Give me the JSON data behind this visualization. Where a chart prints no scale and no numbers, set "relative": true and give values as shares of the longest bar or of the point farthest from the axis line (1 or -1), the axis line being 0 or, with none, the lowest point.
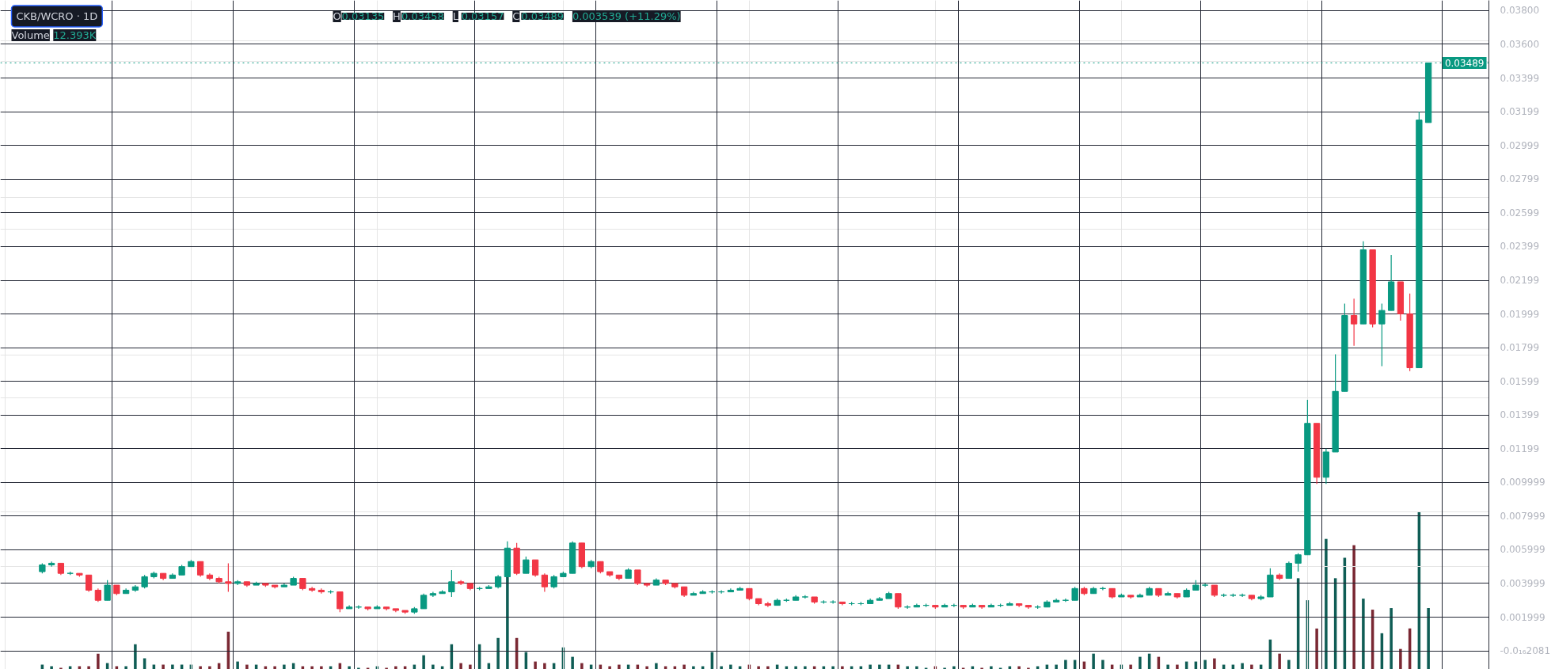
{
  "chart_data": [
    {
      "type": "candlestick",
      "title": "CKB/WCRO · 1D",
      "annotations": [
        "O0.03135",
        "H0.03458",
        "L0.03157",
        "C0.03489",
        "0.003539 (+11.29%)"
      ],
      "categories": [
        null,
        null,
        null,
        null,
        null,
        null,
        null,
        null,
        null,
        null,
        null,
        null,
        null,
        null,
        null,
        null,
        null,
        null,
        null,
        null,
        null,
        null,
        null,
        null,
        null,
        null,
        null,
        null,
        null,
        null,
        null,
        null,
        null,
        null,
        null,
        null,
        null,
        null,
        null,
        null,
        null,
        null,
        null,
        null,
        null,
        null,
        null,
        null,
        null,
        null,
        null,
        null,
        null,
        null,
        null,
        null,
        null,
        null,
        null,
        null,
        null,
        null,
        null,
        null,
        null,
        null,
        null,
        null,
        null,
        null,
        null,
        null,
        null,
        null,
        null,
        null,
        null,
        null,
        null,
        null,
        null,
        null,
        null,
        null,
        null,
        null,
        null,
        null,
        null,
        null,
        null,
        null,
        null,
        null,
        null,
        null,
        null,
        null,
        null,
        null,
        null,
        null,
        null,
        null,
        null,
        null,
        null,
        null,
        null,
        null,
        null,
        null,
        null,
        null,
        null,
        null,
        null,
        null,
        null,
        null,
        null,
        null,
        null,
        null,
        null,
        null,
        null,
        null,
        null,
        null,
        null,
        null,
        null,
        null,
        null,
        null,
        null,
        null,
        null,
        null,
        null,
        null,
        null,
        null,
        null,
        null,
        null,
        null,
        null,
        null,
        null,
        null,
        null,
        null,
        null,
        null,
        null,
        null,
        null,
        null
      ],
      "ohlc": [
        null,
        null,
        null,
        null,
        [
          0.0047,
          0.0052,
          0.0046,
          0.0051
        ],
        [
          0.0051,
          0.0053,
          0.005,
          0.0052
        ],
        [
          0.0052,
          0.0052,
          0.0045,
          0.0046
        ],
        [
          0.0046,
          0.0047,
          0.0045,
          0.0046
        ],
        [
          0.0046,
          0.0046,
          0.0044,
          0.0045
        ],
        [
          0.0045,
          0.0045,
          0.0035,
          0.0036
        ],
        [
          0.0036,
          0.0037,
          0.0029,
          0.003
        ],
        [
          0.003,
          0.0042,
          0.003,
          0.0039
        ],
        [
          0.0039,
          0.0039,
          0.0033,
          0.0034
        ],
        [
          0.0034,
          0.0037,
          0.0034,
          0.0036
        ],
        [
          0.0036,
          0.0039,
          0.0035,
          0.0038
        ],
        [
          0.0038,
          0.0045,
          0.0037,
          0.0044
        ],
        [
          0.0044,
          0.0047,
          0.0043,
          0.0046
        ],
        [
          0.0046,
          0.0046,
          0.0042,
          0.0043
        ],
        [
          0.0043,
          0.0046,
          0.0043,
          0.0045
        ],
        [
          0.0045,
          0.0051,
          0.0045,
          0.005
        ],
        [
          0.005,
          0.0054,
          0.005,
          0.0053
        ],
        [
          0.0053,
          0.0053,
          0.0044,
          0.0045
        ],
        [
          0.0045,
          0.0046,
          0.0042,
          0.0043
        ],
        [
          0.0043,
          0.0044,
          0.004,
          0.0041
        ],
        [
          0.0041,
          0.0052,
          0.0035,
          0.004
        ],
        [
          0.004,
          0.0042,
          0.0039,
          0.0041
        ],
        [
          0.0041,
          0.0041,
          0.0038,
          0.0039
        ],
        [
          0.0039,
          0.0041,
          0.0039,
          0.004
        ],
        [
          0.004,
          0.004,
          0.0038,
          0.0039
        ],
        [
          0.0039,
          0.0039,
          0.0037,
          0.0038
        ],
        [
          0.0038,
          0.004,
          0.0038,
          0.0039
        ],
        [
          0.0039,
          0.0044,
          0.0039,
          0.0043
        ],
        [
          0.0043,
          0.0043,
          0.0036,
          0.0037
        ],
        [
          0.0037,
          0.0038,
          0.0035,
          0.0036
        ],
        [
          0.0036,
          0.0037,
          0.0034,
          0.0035
        ],
        [
          0.0035,
          0.0036,
          0.0034,
          0.0035
        ],
        [
          0.0035,
          0.0035,
          0.0023,
          0.0025
        ],
        [
          0.0025,
          0.0027,
          0.0025,
          0.0026
        ],
        [
          0.0026,
          0.0027,
          0.0025,
          0.0026
        ],
        [
          0.0026,
          0.0026,
          0.0024,
          0.0025
        ],
        [
          0.0025,
          0.0027,
          0.0025,
          0.0026
        ],
        [
          0.0026,
          0.0026,
          0.0024,
          0.0025
        ],
        [
          0.0025,
          0.0025,
          0.0023,
          0.0024
        ],
        [
          0.0024,
          0.0024,
          0.0022,
          0.0023
        ],
        [
          0.0023,
          0.0026,
          0.0022,
          0.0025
        ],
        [
          0.0025,
          0.0034,
          0.0025,
          0.0033
        ],
        [
          0.0033,
          0.0035,
          0.0032,
          0.0034
        ],
        [
          0.0034,
          0.0036,
          0.0034,
          0.0035
        ],
        [
          0.0035,
          0.0048,
          0.0032,
          0.0041
        ],
        [
          0.0041,
          0.0042,
          0.0039,
          0.004
        ],
        [
          0.004,
          0.004,
          0.0036,
          0.0037
        ],
        [
          0.0037,
          0.0038,
          0.0036,
          0.0037
        ],
        [
          0.0037,
          0.0039,
          0.0037,
          0.0038
        ],
        [
          0.0038,
          0.0045,
          0.0037,
          0.0044
        ],
        [
          0.0044,
          0.0065,
          0.0044,
          0.0061
        ],
        [
          0.0061,
          0.0064,
          0.0045,
          0.0046
        ],
        [
          0.0046,
          0.0056,
          0.0046,
          0.0054
        ],
        [
          0.0054,
          0.0054,
          0.0044,
          0.0045
        ],
        [
          0.0045,
          0.0046,
          0.0035,
          0.0038
        ],
        [
          0.0038,
          0.0045,
          0.0037,
          0.0044
        ],
        [
          0.0044,
          0.0047,
          0.0044,
          0.0046
        ],
        [
          0.0046,
          0.0065,
          0.0046,
          0.0064
        ],
        [
          0.0064,
          0.0064,
          0.0049,
          0.005
        ],
        [
          0.005,
          0.0054,
          0.0049,
          0.0053
        ],
        [
          0.0053,
          0.0053,
          0.0046,
          0.0047
        ],
        [
          0.0047,
          0.0047,
          0.0044,
          0.0045
        ],
        [
          0.0045,
          0.0045,
          0.0042,
          0.0043
        ],
        [
          0.0043,
          0.0049,
          0.0043,
          0.0048
        ],
        [
          0.0048,
          0.0048,
          0.0039,
          0.004
        ],
        [
          0.004,
          0.004,
          0.0038,
          0.0039
        ],
        [
          0.0039,
          0.0043,
          0.0039,
          0.0042
        ],
        [
          0.0042,
          0.0042,
          0.0039,
          0.004
        ],
        [
          0.004,
          0.004,
          0.0037,
          0.0038
        ],
        [
          0.0038,
          0.0038,
          0.0032,
          0.0033
        ],
        [
          0.0033,
          0.0035,
          0.0033,
          0.0034
        ],
        [
          0.0034,
          0.0036,
          0.0034,
          0.0035
        ],
        [
          0.0035,
          0.0036,
          0.0034,
          0.0035
        ],
        [
          0.0035,
          0.0036,
          0.0034,
          0.0035
        ],
        [
          0.0035,
          0.0037,
          0.0035,
          0.0036
        ],
        [
          0.0036,
          0.0038,
          0.0036,
          0.0037
        ],
        [
          0.0037,
          0.0037,
          0.003,
          0.0031
        ],
        [
          0.0031,
          0.0031,
          0.0027,
          0.0028
        ],
        [
          0.0028,
          0.0029,
          0.0026,
          0.0027
        ],
        [
          0.0027,
          0.0031,
          0.0027,
          0.003
        ],
        [
          0.003,
          0.0031,
          0.0029,
          0.003
        ],
        [
          0.003,
          0.0033,
          0.003,
          0.0032
        ],
        [
          0.0032,
          0.0033,
          0.0031,
          0.0032
        ],
        [
          0.0032,
          0.0032,
          0.0028,
          0.0029
        ],
        [
          0.0029,
          0.003,
          0.0028,
          0.0029
        ],
        [
          0.0029,
          0.003,
          0.0028,
          0.0029
        ],
        [
          0.0029,
          0.0029,
          0.0027,
          0.0028
        ],
        [
          0.0028,
          0.0029,
          0.0027,
          0.0028
        ],
        [
          0.0028,
          0.0029,
          0.0027,
          0.0028
        ],
        [
          0.0028,
          0.0031,
          0.0028,
          0.003
        ],
        [
          0.003,
          0.0032,
          0.003,
          0.0031
        ],
        [
          0.0031,
          0.0035,
          0.0031,
          0.0034
        ],
        [
          0.0034,
          0.0034,
          0.0025,
          0.0026
        ],
        [
          0.0026,
          0.0027,
          0.0025,
          0.0026
        ],
        [
          0.0026,
          0.0028,
          0.0026,
          0.0027
        ],
        [
          0.0027,
          0.0028,
          0.0026,
          0.0027
        ],
        [
          0.0027,
          0.0027,
          0.0025,
          0.0026
        ],
        [
          0.0026,
          0.0028,
          0.0026,
          0.0027
        ],
        [
          0.0027,
          0.0028,
          0.0026,
          0.0027
        ],
        [
          0.0027,
          0.0027,
          0.0025,
          0.0026
        ],
        [
          0.0026,
          0.0028,
          0.0026,
          0.0027
        ],
        [
          0.0027,
          0.0027,
          0.0025,
          0.0026
        ],
        [
          0.0026,
          0.0028,
          0.0026,
          0.0027
        ],
        [
          0.0027,
          0.0028,
          0.0026,
          0.0027
        ],
        [
          0.0027,
          0.0029,
          0.0027,
          0.0028
        ],
        [
          0.0028,
          0.0028,
          0.0026,
          0.0027
        ],
        [
          0.0027,
          0.0027,
          0.0025,
          0.0026
        ],
        [
          0.0026,
          0.0027,
          0.0025,
          0.0026
        ],
        [
          0.0026,
          0.003,
          0.0026,
          0.0029
        ],
        [
          0.0029,
          0.0031,
          0.0029,
          0.003
        ],
        [
          0.003,
          0.0031,
          0.0029,
          0.003
        ],
        [
          0.003,
          0.0038,
          0.003,
          0.0037
        ],
        [
          0.0037,
          0.0038,
          0.0033,
          0.0034
        ],
        [
          0.0034,
          0.0038,
          0.0034,
          0.0037
        ],
        [
          0.0037,
          0.0038,
          0.0036,
          0.0037
        ],
        [
          0.0037,
          0.0037,
          0.0031,
          0.0032
        ],
        [
          0.0032,
          0.0034,
          0.0032,
          0.0033
        ],
        [
          0.0033,
          0.0033,
          0.0031,
          0.0032
        ],
        [
          0.0032,
          0.0034,
          0.0032,
          0.0033
        ],
        [
          0.0033,
          0.0038,
          0.0033,
          0.0037
        ],
        [
          0.0037,
          0.0037,
          0.0032,
          0.0033
        ],
        [
          0.0033,
          0.0035,
          0.0033,
          0.0034
        ],
        [
          0.0034,
          0.0034,
          0.0031,
          0.0032
        ],
        [
          0.0032,
          0.0037,
          0.0032,
          0.0036
        ],
        [
          0.0036,
          0.0042,
          0.0036,
          0.0039
        ],
        [
          0.0039,
          0.004,
          0.0038,
          0.0039
        ],
        [
          0.0039,
          0.0039,
          0.0032,
          0.0033
        ],
        [
          0.0033,
          0.0034,
          0.0032,
          0.0033
        ],
        [
          0.0033,
          0.0034,
          0.0032,
          0.0033
        ],
        [
          0.0033,
          0.0034,
          0.0032,
          0.0033
        ],
        [
          0.0033,
          0.0033,
          0.003,
          0.0031
        ],
        [
          0.0031,
          0.0033,
          0.003,
          0.0032
        ],
        [
          0.0032,
          0.0049,
          0.0032,
          0.0045
        ],
        [
          0.0045,
          0.0046,
          0.0042,
          0.0043
        ],
        [
          0.0043,
          0.0053,
          0.0043,
          0.0052
        ],
        [
          0.0052,
          0.0058,
          0.0047,
          0.0057
        ],
        [
          0.0057,
          0.0149,
          0.0057,
          0.0135
        ],
        [
          0.0135,
          0.0135,
          0.0099,
          0.0103
        ],
        [
          0.0103,
          0.012,
          0.0099,
          0.0118
        ],
        [
          0.0118,
          0.0176,
          0.0118,
          0.0154
        ],
        [
          0.0154,
          0.0206,
          0.0154,
          0.0199
        ],
        [
          0.0199,
          0.0209,
          0.0181,
          0.0194
        ],
        [
          0.0194,
          0.0243,
          0.0194,
          0.0238
        ],
        [
          0.0238,
          0.0238,
          0.0192,
          0.0194
        ],
        [
          0.0194,
          0.0206,
          0.0169,
          0.0202
        ],
        [
          0.0202,
          0.0235,
          0.0202,
          0.0219
        ],
        [
          0.0219,
          0.0219,
          0.0196,
          0.02
        ],
        [
          0.02,
          0.0212,
          0.0166,
          0.0168
        ],
        [
          0.0168,
          0.032,
          0.0168,
          0.0315
        ],
        [
          0.03135,
          0.03489,
          0.03135,
          0.03489
        ],
        null,
        null,
        null,
        null,
        null,
        null
      ],
      "colors": [
        null,
        null,
        null,
        null,
        "#089981",
        "#089981",
        "#f23645",
        "#089981",
        "#f23645",
        "#f23645",
        "#f23645",
        "#089981",
        "#f23645",
        "#089981",
        "#089981",
        "#089981",
        "#089981",
        "#f23645",
        "#089981",
        "#089981",
        "#089981",
        "#f23645",
        "#f23645",
        "#f23645",
        "#f23645",
        "#089981",
        "#f23645",
        "#089981",
        "#f23645",
        "#f23645",
        "#089981",
        "#089981",
        "#f23645",
        "#f23645",
        "#f23645",
        "#089981",
        "#f23645",
        "#089981",
        "#089981",
        "#f23645",
        "#089981",
        "#f23645",
        "#f23645",
        "#f23645",
        "#089981",
        "#089981",
        "#089981",
        "#089981",
        "#089981",
        "#f23645",
        "#f23645",
        "#089981",
        "#089981",
        "#089981",
        "#089981",
        "#f23645",
        "#089981",
        "#f23645",
        "#f23645",
        "#089981",
        "#089981",
        "#089981",
        "#f23645",
        "#089981",
        "#f23645",
        "#f23645",
        "#f23645",
        "#089981",
        "#f23645",
        "#f23645",
        "#089981",
        "#f23645",
        "#f23645",
        "#f23645",
        "#089981",
        "#089981",
        "#089981",
        "#089981",
        "#089981",
        "#089981",
        "#f23645",
        "#f23645",
        "#f23645",
        "#089981",
        "#089981",
        "#089981",
        "#089981",
        "#f23645",
        "#089981",
        "#089981",
        "#f23645",
        "#089981",
        "#089981",
        "#089981",
        "#089981",
        "#089981",
        "#f23645",
        "#089981",
        "#089981",
        "#089981",
        "#f23645",
        "#089981",
        "#089981",
        "#f23645",
        "#089981",
        "#f23645",
        "#089981",
        "#089981",
        "#089981",
        "#f23645",
        "#f23645",
        "#089981",
        "#089981",
        "#089981",
        "#089981",
        "#089981",
        "#f23645",
        "#089981",
        "#089981",
        "#f23645",
        "#089981",
        "#f23645",
        "#089981",
        "#089981",
        "#f23645",
        "#089981",
        "#f23645",
        "#089981",
        "#089981",
        "#089981",
        "#f23645",
        "#089981",
        "#089981",
        "#089981",
        "#f23645",
        "#089981",
        "#089981",
        "#f23645",
        "#089981",
        "#089981",
        "#089981",
        "#f23645",
        "#089981",
        "#089981",
        "#089981",
        "#f23645",
        "#089981",
        "#f23645",
        "#089981",
        "#089981",
        "#f23645",
        "#f23645",
        "#089981",
        "#089981",
        null,
        null,
        null,
        null,
        null,
        null
      ],
      "ylim": [
        -0.0011,
        0.0386
      ],
      "yticks": [
        {
          "value": -1.62081e-17,
          "label": "-0.0₁₆2081"
        },
        0.001999,
        0.003999,
        0.005999,
        0.007999,
        0.009999,
        0.01199,
        0.01399,
        0.01599,
        0.01799,
        0.01999,
        0.02199,
        0.02399,
        0.02599,
        0.02799,
        0.02999,
        0.03199,
        0.03399,
        {
          "value": 0.036,
          "label": "0.03600"
        },
        {
          "value": 0.038,
          "label": "0.03800"
        }
      ],
      "ref_lines": [
        {
          "axis": "y",
          "value": 0.03489,
          "label": "0.03489",
          "color": "#089981",
          "line_style": "dotted"
        }
      ],
      "grid": true,
      "tick_labels": "y"
    },
    {
      "type": "bar",
      "relative": true,
      "title": "Volume",
      "annotations": [
        "12.393K"
      ],
      "tick_labels": false,
      "categories": [
        null,
        null,
        null,
        null,
        null,
        null,
        null,
        null,
        null,
        null,
        null,
        null,
        null,
        null,
        null,
        null,
        null,
        null,
        null,
        null,
        null,
        null,
        null,
        null,
        null,
        null,
        null,
        null,
        null,
        null,
        null,
        null,
        null,
        null,
        null,
        null,
        null,
        null,
        null,
        null,
        null,
        null,
        null,
        null,
        null,
        null,
        null,
        null,
        null,
        null,
        null,
        null,
        null,
        null,
        null,
        null,
        null,
        null,
        null,
        null,
        null,
        null,
        null,
        null,
        null,
        null,
        null,
        null,
        null,
        null,
        null,
        null,
        null,
        null,
        null,
        null,
        null,
        null,
        null,
        null,
        null,
        null,
        null,
        null,
        null,
        null,
        null,
        null,
        null,
        null,
        null,
        null,
        null,
        null,
        null,
        null,
        null,
        null,
        null,
        null,
        null,
        null,
        null,
        null,
        null,
        null,
        null,
        null,
        null,
        null,
        null,
        null,
        null,
        null,
        null,
        null,
        null,
        null,
        null,
        null,
        null,
        null,
        null,
        null,
        null,
        null,
        null,
        null,
        null,
        null,
        null,
        null,
        null,
        null,
        null,
        null,
        null,
        null,
        null,
        null,
        null,
        null,
        null,
        null,
        null,
        null,
        null,
        null,
        null,
        null,
        null,
        null,
        null,
        null,
        null,
        null,
        null,
        null,
        null,
        null
      ],
      "values": [
        null,
        null,
        null,
        null,
        0.03,
        0.02,
        0.01,
        0.02,
        0.02,
        0.02,
        0.1,
        0.04,
        0.02,
        0.02,
        0.16,
        0.07,
        0.03,
        0.03,
        0.03,
        0.03,
        0.03,
        0.02,
        0.02,
        0.04,
        0.24,
        0.05,
        0.03,
        0.03,
        0.02,
        0.02,
        0.03,
        0.04,
        0.02,
        0.02,
        0.02,
        0.02,
        0.04,
        0.02,
        0.01,
        0.01,
        0.02,
        0.01,
        0.02,
        0.02,
        0.03,
        0.09,
        0.03,
        0.02,
        0.16,
        0.04,
        0.03,
        0.16,
        0.04,
        0.2,
        0.59,
        0.2,
        0.11,
        0.05,
        0.04,
        0.04,
        0.14,
        0.08,
        0.04,
        0.03,
        0.03,
        0.02,
        0.03,
        0.03,
        0.03,
        0.02,
        0.04,
        0.02,
        0.02,
        0.03,
        0.02,
        0.02,
        0.11,
        0.02,
        0.03,
        0.02,
        0.03,
        0.02,
        0.02,
        0.03,
        0.02,
        0.02,
        0.02,
        0.02,
        0.02,
        0.02,
        0.02,
        0.02,
        0.02,
        0.03,
        0.03,
        0.03,
        0.03,
        0.02,
        0.02,
        0.01,
        0.02,
        0.01,
        0.02,
        0.01,
        0.02,
        0.01,
        0.02,
        0.01,
        0.02,
        0.02,
        0.01,
        0.02,
        0.03,
        0.03,
        0.06,
        0.06,
        0.05,
        0.1,
        0.06,
        0.03,
        0.03,
        0.03,
        0.08,
        0.1,
        0.08,
        0.03,
        0.03,
        0.05,
        0.05,
        0.06,
        0.07,
        0.03,
        0.03,
        0.04,
        0.03,
        0.03,
        0.19,
        0.1,
        0.06,
        0.58,
        0.44,
        0.26,
        0.83,
        0.58,
        0.71,
        0.79,
        0.45,
        0.38,
        0.23,
        0.39,
        0.13,
        0.26,
        1,
        0.39,
        null,
        null,
        null,
        null,
        null,
        null
      ],
      "colors": [
        null,
        null,
        null,
        null,
        "#0f5d55",
        "#0f5d55",
        "#7a2833",
        "#0f5d55",
        "#7a2833",
        "#7a2833",
        "#7a2833",
        "#0f5d55",
        "#7a2833",
        "#0f5d55",
        "#0f5d55",
        "#0f5d55",
        "#0f5d55",
        "#7a2833",
        "#0f5d55",
        "#0f5d55",
        "#0f5d55",
        "#7a2833",
        "#7a2833",
        "#7a2833",
        "#7a2833",
        "#0f5d55",
        "#7a2833",
        "#0f5d55",
        "#7a2833",
        "#7a2833",
        "#0f5d55",
        "#0f5d55",
        "#7a2833",
        "#7a2833",
        "#7a2833",
        "#0f5d55",
        "#7a2833",
        "#0f5d55",
        "#0f5d55",
        "#7a2833",
        "#0f5d55",
        "#7a2833",
        "#7a2833",
        "#7a2833",
        "#0f5d55",
        "#0f5d55",
        "#0f5d55",
        "#0f5d55",
        "#0f5d55",
        "#7a2833",
        "#7a2833",
        "#0f5d55",
        "#0f5d55",
        "#0f5d55",
        "#0f5d55",
        "#7a2833",
        "#0f5d55",
        "#7a2833",
        "#7a2833",
        "#0f5d55",
        "#0f5d55",
        "#0f5d55",
        "#7a2833",
        "#0f5d55",
        "#7a2833",
        "#7a2833",
        "#7a2833",
        "#0f5d55",
        "#7a2833",
        "#7a2833",
        "#0f5d55",
        "#7a2833",
        "#7a2833",
        "#7a2833",
        "#0f5d55",
        "#0f5d55",
        "#0f5d55",
        "#0f5d55",
        "#0f5d55",
        "#0f5d55",
        "#7a2833",
        "#7a2833",
        "#7a2833",
        "#0f5d55",
        "#0f5d55",
        "#0f5d55",
        "#0f5d55",
        "#7a2833",
        "#0f5d55",
        "#0f5d55",
        "#7a2833",
        "#0f5d55",
        "#0f5d55",
        "#0f5d55",
        "#0f5d55",
        "#0f5d55",
        "#7a2833",
        "#0f5d55",
        "#0f5d55",
        "#0f5d55",
        "#7a2833",
        "#0f5d55",
        "#0f5d55",
        "#7a2833",
        "#0f5d55",
        "#7a2833",
        "#0f5d55",
        "#0f5d55",
        "#0f5d55",
        "#7a2833",
        "#7a2833",
        "#0f5d55",
        "#0f5d55",
        "#0f5d55",
        "#0f5d55",
        "#0f5d55",
        "#7a2833",
        "#0f5d55",
        "#0f5d55",
        "#7a2833",
        "#0f5d55",
        "#7a2833",
        "#0f5d55",
        "#0f5d55",
        "#7a2833",
        "#0f5d55",
        "#7a2833",
        "#0f5d55",
        "#0f5d55",
        "#0f5d55",
        "#7a2833",
        "#0f5d55",
        "#0f5d55",
        "#0f5d55",
        "#7a2833",
        "#0f5d55",
        "#0f5d55",
        "#7a2833",
        "#0f5d55",
        "#0f5d55",
        "#0f5d55",
        "#7a2833",
        "#0f5d55",
        "#0f5d55",
        "#0f5d55",
        "#7a2833",
        "#0f5d55",
        "#7a2833",
        "#0f5d55",
        "#0f5d55",
        "#7a2833",
        "#7a2833",
        "#0f5d55",
        "#0f5d55",
        null,
        null,
        null,
        null,
        null,
        null
      ]
    }
  ]
}
